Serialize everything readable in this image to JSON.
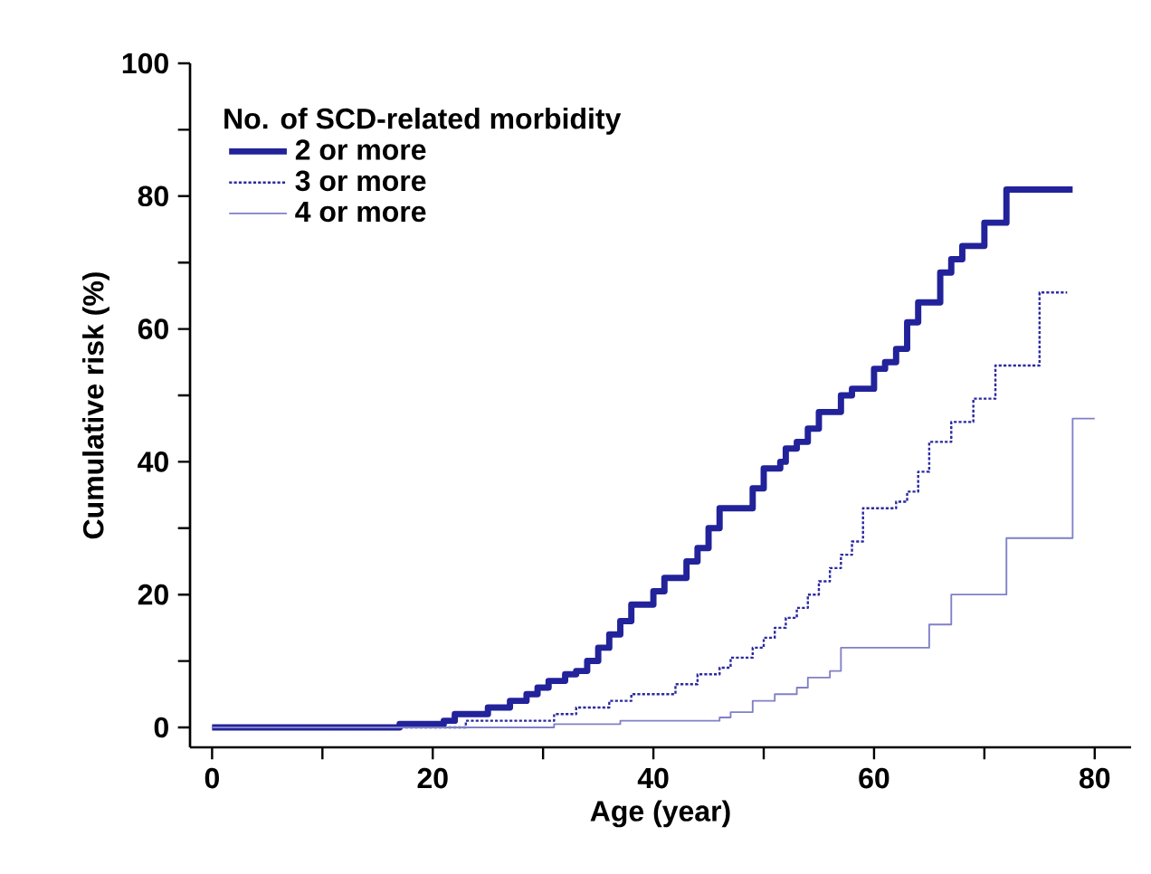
{
  "chart_data": {
    "type": "step",
    "xlabel": "Age (year)",
    "ylabel": "Cumulative risk (%)",
    "legend_title": "No. of SCD-related morbidity",
    "legend": "top left",
    "grid": false,
    "xlim": [
      -2,
      83.3
    ],
    "ylim": [
      -3,
      100
    ],
    "xticks": [
      0,
      {
        "value": 10,
        "label": null
      },
      20,
      {
        "value": 30,
        "label": null
      },
      40,
      {
        "value": 50,
        "label": null
      },
      60,
      {
        "value": 70,
        "label": null
      },
      80
    ],
    "yticks": [
      0,
      {
        "value": 10,
        "label": null
      },
      20,
      {
        "value": 30,
        "label": null
      },
      40,
      {
        "value": 50,
        "label": null
      },
      60,
      {
        "value": 70,
        "label": null
      },
      80,
      {
        "value": 90,
        "label": null
      },
      100
    ],
    "series": [
      {
        "name": "2 or more",
        "color": "#22229a",
        "line_style": "solid",
        "x": [
          0,
          17,
          21,
          22,
          25,
          27,
          28.5,
          29.5,
          30.5,
          32,
          33,
          34,
          35,
          36,
          37,
          38,
          40,
          41,
          43,
          44,
          45,
          46,
          49,
          50,
          51.5,
          52,
          53,
          54,
          55,
          57,
          58,
          60,
          61,
          62,
          63,
          64,
          66,
          67,
          68,
          70,
          72,
          78
        ],
        "values": [
          0,
          0.5,
          1,
          2,
          3,
          4,
          5,
          6,
          7,
          8,
          8.5,
          10,
          12,
          14,
          16,
          18.5,
          20.5,
          22.5,
          25,
          27,
          30,
          33,
          36,
          39,
          40,
          42,
          43,
          45,
          47.5,
          50,
          51,
          54,
          55,
          57,
          61,
          64,
          68.5,
          70.5,
          72.5,
          76,
          81,
          81
        ]
      },
      {
        "name": "3 or more",
        "color": "#2a2aa0",
        "line_style": "dotted",
        "x": [
          0,
          23,
          31,
          33,
          36,
          38,
          42,
          44,
          46,
          47,
          49,
          50,
          51,
          52,
          53,
          54,
          55,
          56,
          57,
          58,
          59,
          62,
          63,
          64,
          65,
          67,
          69,
          71,
          75,
          77.5
        ],
        "values": [
          0,
          1,
          2,
          3,
          4,
          5,
          6.5,
          8,
          9,
          10.5,
          12,
          13.5,
          15,
          16.5,
          18,
          20,
          22,
          24,
          26,
          28,
          33,
          34,
          35.5,
          38.5,
          43,
          46,
          49.5,
          54.5,
          65.5,
          65.5
        ]
      },
      {
        "name": "4 or more",
        "color": "#8080c8",
        "line_style": "solid",
        "x": [
          0,
          31,
          37,
          46,
          47,
          49,
          51,
          53,
          54,
          56,
          57,
          65,
          67,
          72,
          78,
          80
        ],
        "values": [
          0,
          0.5,
          1,
          1.5,
          2.3,
          4,
          5,
          6,
          7.5,
          8.5,
          12,
          15.5,
          20,
          28.5,
          46.5,
          46.5
        ]
      }
    ]
  }
}
